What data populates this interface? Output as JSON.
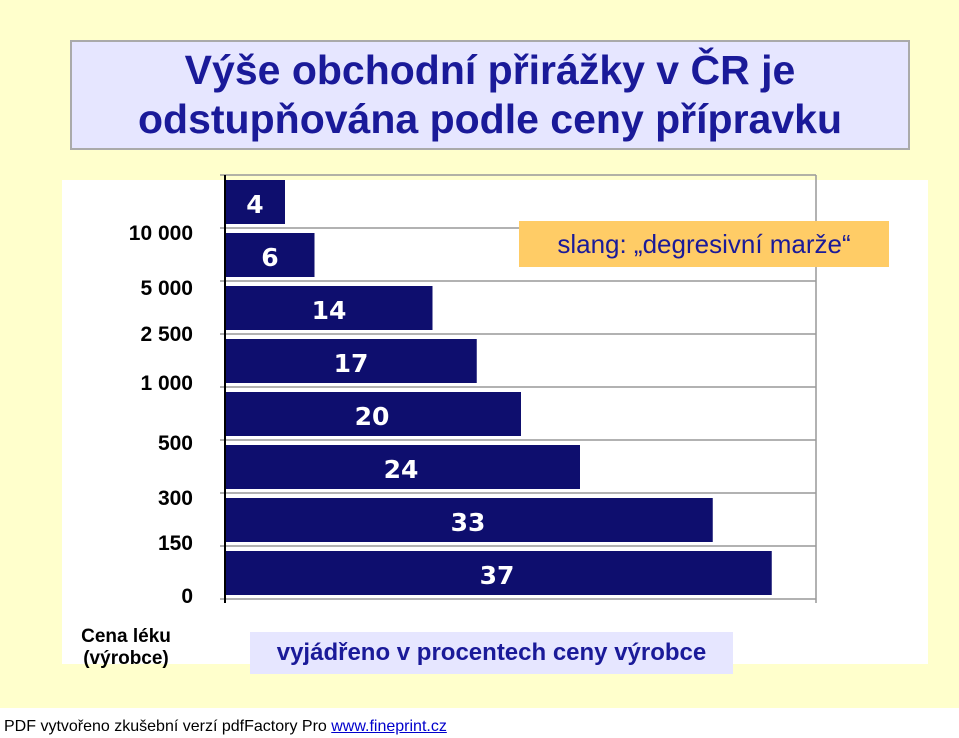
{
  "title_line1": "Výše obchodní přirážky v ČR je",
  "title_line2": "odstupňována podle ceny přípravku",
  "annotation": "slang: „degresivní marže“",
  "footer": {
    "text": "PDF vytvořeno zkušební verzí pdfFactory Pro ",
    "link": "www.fineprint.cz"
  },
  "colors": {
    "bar": "#0e0e6e",
    "label": "#ffffff",
    "title": "#1a1a99",
    "annotation_bg": "#ffcc66"
  },
  "chart_data": {
    "type": "bar",
    "orientation": "horizontal",
    "categories": [
      "10 000",
      "5 000",
      "2 500",
      "1 000",
      "500",
      "300",
      "150",
      "0"
    ],
    "values": [
      4,
      6,
      14,
      17,
      20,
      24,
      33,
      37
    ],
    "data_labels": [
      "4",
      "6",
      "14",
      "17",
      "20",
      "24",
      "33",
      "37"
    ],
    "ylabel": "Cena léku\n(výrobce)",
    "xlabel": "vyjádřeno v procentech ceny výrobce",
    "xlim": [
      0,
      40
    ],
    "grid": "horizontal"
  }
}
